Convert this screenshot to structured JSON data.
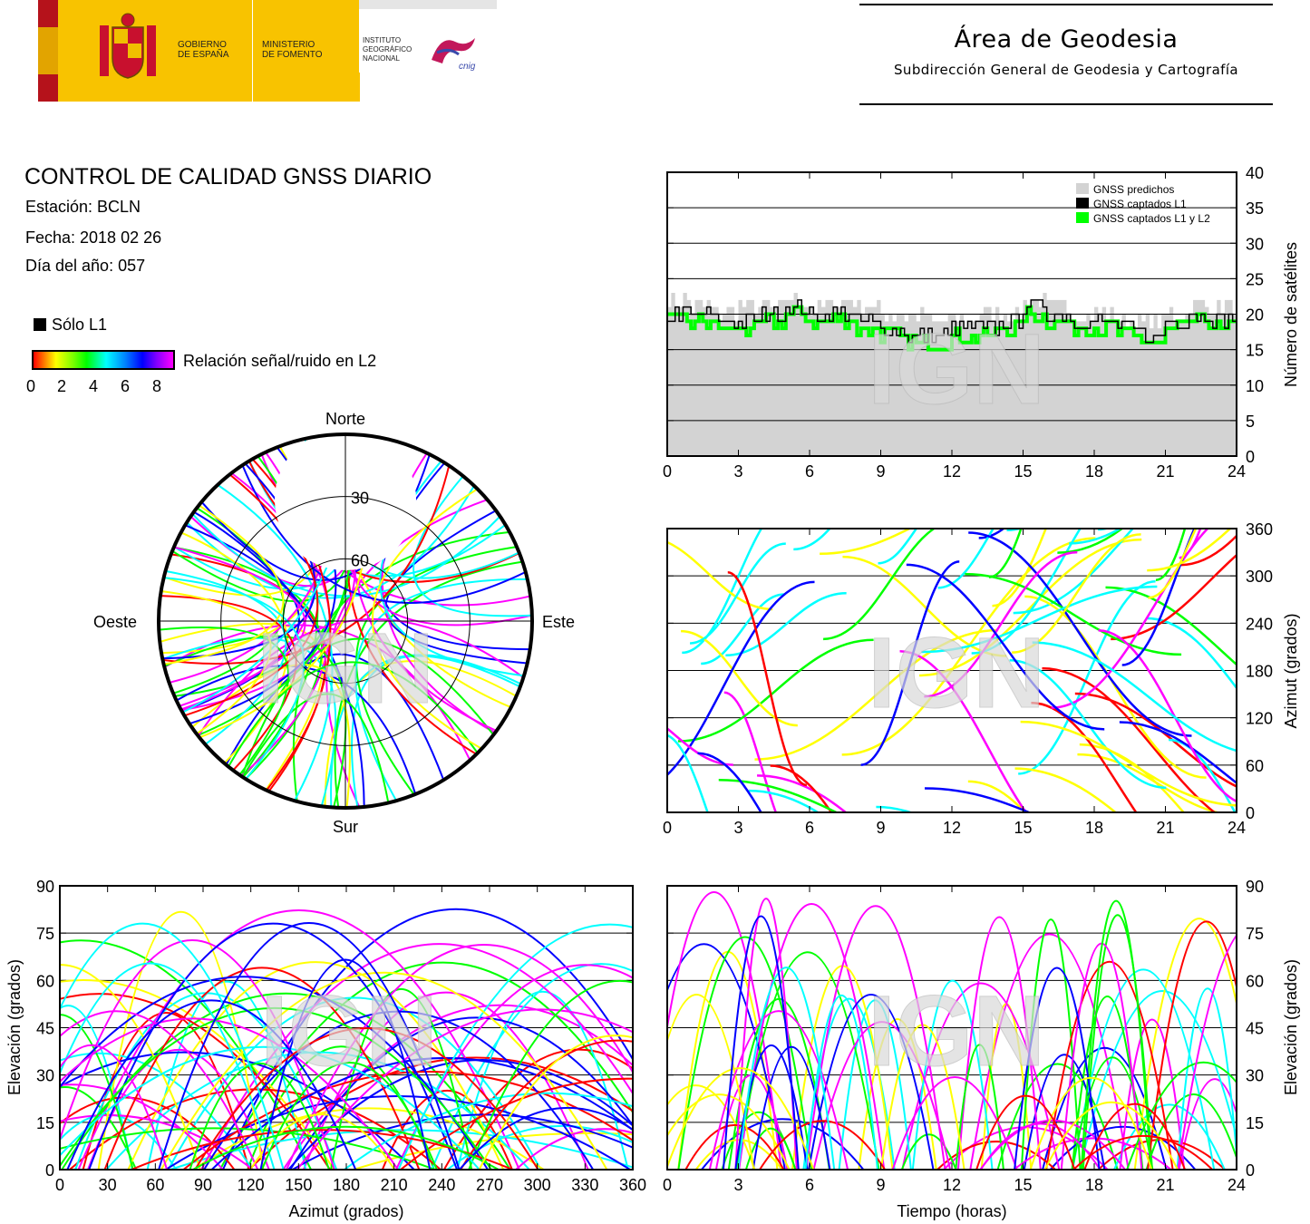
{
  "header": {
    "gov_line1": "GOBIERNO",
    "gov_line2": "DE ESPAÑA",
    "ministry_line1": "MINISTERIO",
    "ministry_line2": "DE FOMENTO",
    "ign_line1": "INSTITUTO",
    "ign_line2": "GEOGRÁFICO",
    "ign_line3": "NACIONAL",
    "ign_mark": "cnig",
    "area_title": "Área de Geodesia",
    "area_subtitle": "Subdirección General de Geodesia y Cartografía"
  },
  "report": {
    "title": "CONTROL DE CALIDAD GNSS DIARIO",
    "station": "Estación: BCLN",
    "date": "Fecha: 2018 02 26",
    "doy": "Día del año: 057"
  },
  "legend": {
    "l1_only": "Sólo L1",
    "snr_label": "Relación señal/ruido en L2",
    "snr_ticks": [
      "0",
      "2",
      "4",
      "6",
      "8"
    ],
    "snr_colors": [
      "#ff0000",
      "#ffff00",
      "#00ff00",
      "#00ffff",
      "#0000ff",
      "#ff00ff"
    ]
  },
  "watermark": "IGN",
  "chart_data": [
    {
      "id": "satellite-count",
      "type": "line",
      "x": [
        0,
        1,
        2,
        3,
        4,
        5,
        6,
        7,
        8,
        9,
        10,
        11,
        12,
        13,
        14,
        15,
        16,
        17,
        18,
        19,
        20,
        21,
        22,
        23,
        24
      ],
      "series": [
        {
          "name": "GNSS predichos",
          "color": "#d3d3d3",
          "values": [
            22,
            21,
            20,
            21,
            21,
            22,
            21,
            22,
            21,
            20,
            20,
            19,
            19,
            20,
            20,
            22,
            21,
            20,
            20,
            19,
            19,
            20,
            21,
            21,
            21
          ]
        },
        {
          "name": "GNSS captados L1",
          "color": "#000000",
          "values": [
            20,
            20,
            19,
            19,
            20,
            21,
            20,
            20,
            19,
            18,
            17,
            17,
            18,
            18,
            19,
            21,
            20,
            19,
            19,
            18,
            17,
            19,
            20,
            19,
            20
          ]
        },
        {
          "name": "GNSS captados L1 y L2",
          "color": "#00ff00",
          "values": [
            19,
            19,
            18,
            18,
            19,
            20,
            19,
            19,
            18,
            17,
            16,
            16,
            17,
            17,
            18,
            20,
            19,
            18,
            18,
            17,
            16,
            18,
            19,
            18,
            19
          ]
        }
      ],
      "xticks": [
        "0",
        "3",
        "6",
        "9",
        "12",
        "15",
        "18",
        "21",
        "24"
      ],
      "yticks": [
        "0",
        "5",
        "10",
        "15",
        "20",
        "25",
        "30",
        "35",
        "40"
      ],
      "ylabel": "Número de satélites",
      "xlim": [
        0,
        24
      ],
      "ylim": [
        0,
        40
      ]
    },
    {
      "id": "azimuth-vs-time",
      "type": "scatter",
      "xticks": [
        "0",
        "3",
        "6",
        "9",
        "12",
        "15",
        "18",
        "21",
        "24"
      ],
      "yticks": [
        "0",
        "60",
        "120",
        "180",
        "240",
        "300",
        "360"
      ],
      "ylabel": "Azimut (grados)",
      "xlim": [
        0,
        24
      ],
      "ylim": [
        0,
        360
      ]
    },
    {
      "id": "elevation-vs-azimuth",
      "type": "scatter",
      "xticks": [
        "0",
        "30",
        "60",
        "90",
        "120",
        "150",
        "180",
        "210",
        "240",
        "270",
        "300",
        "330",
        "360"
      ],
      "yticks": [
        "0",
        "15",
        "30",
        "45",
        "60",
        "75",
        "90"
      ],
      "xlabel": "Azimut (grados)",
      "ylabel": "Elevación (grados)",
      "xlim": [
        0,
        360
      ],
      "ylim": [
        0,
        90
      ]
    },
    {
      "id": "elevation-vs-time",
      "type": "scatter",
      "xticks": [
        "0",
        "3",
        "6",
        "9",
        "12",
        "15",
        "18",
        "21",
        "24"
      ],
      "yticks": [
        "0",
        "15",
        "30",
        "45",
        "60",
        "75",
        "90"
      ],
      "xlabel": "Tiempo (horas)",
      "ylabel": "Elevación (grados)",
      "xlim": [
        0,
        24
      ],
      "ylim": [
        0,
        90
      ]
    },
    {
      "id": "skyplot",
      "type": "scatter",
      "directions": {
        "north": "Norte",
        "south": "Sur",
        "east": "Este",
        "west": "Oeste"
      },
      "rings": [
        "30",
        "60"
      ]
    }
  ]
}
